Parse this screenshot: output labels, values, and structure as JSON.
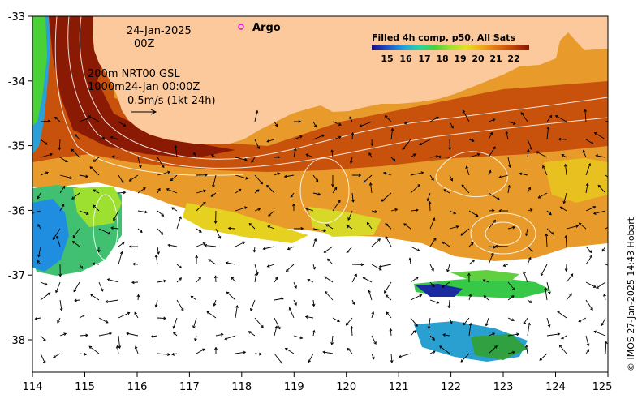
{
  "map": {
    "lon_range": [
      114,
      125
    ],
    "lat_range": [
      -38.5,
      -33
    ],
    "x_ticks": [
      "114",
      "115",
      "116",
      "117",
      "118",
      "119",
      "120",
      "121",
      "122",
      "123",
      "124",
      "125"
    ],
    "y_ticks": [
      "-33",
      "-34",
      "-35",
      "-36",
      "-37",
      "-38"
    ],
    "land_color": "#fcc99c"
  },
  "annotations": {
    "date_line1": "24-Jan-2025",
    "date_line2": "00Z",
    "model_line1": "200m NRT00 GSL",
    "model_line2": "1000m24-Jan 00:00Z",
    "scale_label": "0.5m/s (1kt 24h)",
    "argo_label": "Argo"
  },
  "colorbar": {
    "title": "Filled 4h comp, p50, All Sats",
    "tick_labels": [
      "15",
      "16",
      "17",
      "18",
      "19",
      "20",
      "21",
      "22"
    ],
    "colors": [
      "#1a0f86",
      "#1e50c8",
      "#1fa0e0",
      "#2ad2a8",
      "#48d238",
      "#a0e030",
      "#e8e020",
      "#f0a818",
      "#e07010",
      "#c04008",
      "#8a1404"
    ]
  },
  "credit": "© IMOS 27-Jan-2025 14:43 Hobart"
}
